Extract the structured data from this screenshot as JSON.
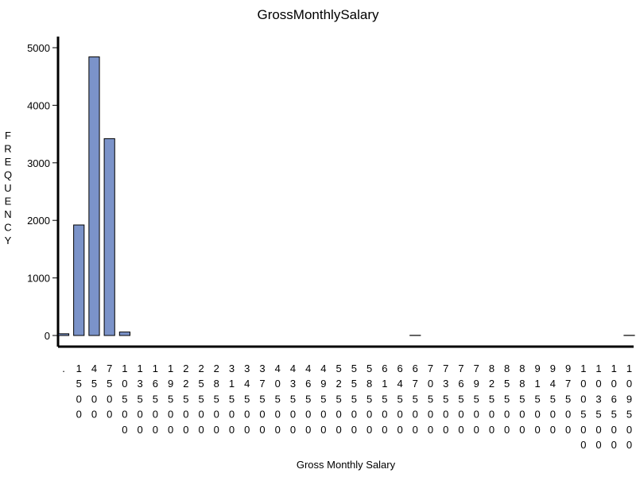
{
  "chart_data": {
    "type": "bar",
    "title": "GrossMonthlySalary",
    "xlabel": "Gross Monthly Salary",
    "ylabel": "FREQUENCY",
    "ylim": [
      0,
      5200
    ],
    "yticks": [
      0,
      1000,
      2000,
      3000,
      4000,
      5000
    ],
    "grid": false,
    "colors": {
      "bar_fill": "#7b93c9",
      "bar_stroke": "#000000",
      "axis": "#000000",
      "text": "#000000"
    },
    "categories": [
      ".",
      "1500",
      "4500",
      "7500",
      "10500",
      "13500",
      "16500",
      "19500",
      "22500",
      "25500",
      "28500",
      "31500",
      "34500",
      "37500",
      "40500",
      "43500",
      "46500",
      "49500",
      "52500",
      "55500",
      "58500",
      "61500",
      "64500",
      "67500",
      "70500",
      "73500",
      "76500",
      "79500",
      "82500",
      "85500",
      "88500",
      "91500",
      "94500",
      "97500",
      "100500",
      "103500",
      "106500",
      "109500"
    ],
    "values": [
      30,
      1920,
      4840,
      3420,
      60,
      0,
      0,
      0,
      0,
      0,
      0,
      0,
      0,
      0,
      0,
      0,
      0,
      0,
      0,
      0,
      0,
      0,
      0,
      3,
      0,
      0,
      0,
      0,
      0,
      0,
      0,
      0,
      0,
      0,
      0,
      0,
      0,
      3
    ]
  }
}
